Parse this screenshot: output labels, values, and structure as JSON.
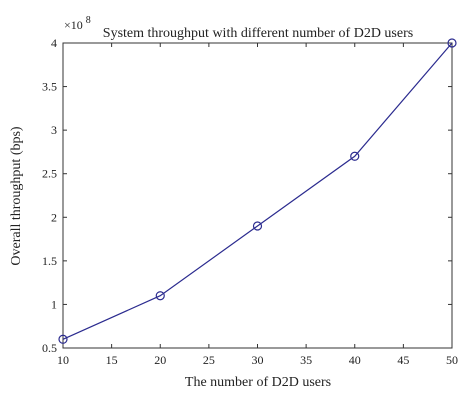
{
  "chart_data": {
    "type": "line",
    "title": "System throughput with different number of D2D users",
    "xlabel": "The number of D2D users",
    "ylabel": "Overall throughput (bps)",
    "x": [
      10,
      20,
      30,
      40,
      50
    ],
    "series": [
      {
        "values": [
          0.6,
          1.1,
          1.9,
          2.7,
          4.0
        ],
        "color": "#2b2b8f",
        "marker": "circle"
      }
    ],
    "xlim": [
      10,
      50
    ],
    "ylim": [
      0.5,
      4
    ],
    "xticks": [
      10,
      15,
      20,
      25,
      30,
      35,
      40,
      45,
      50
    ],
    "yticks": [
      0.5,
      1,
      1.5,
      2,
      2.5,
      3,
      3.5,
      4
    ],
    "ytick_labels": [
      "0.5",
      "1",
      "1.5",
      "2",
      "2.5",
      "3",
      "3.5",
      "4"
    ],
    "y_multiplier_base": "×10",
    "y_multiplier_exponent": "8",
    "grid": false,
    "axis_color": "#333333",
    "background": "#ffffff"
  }
}
